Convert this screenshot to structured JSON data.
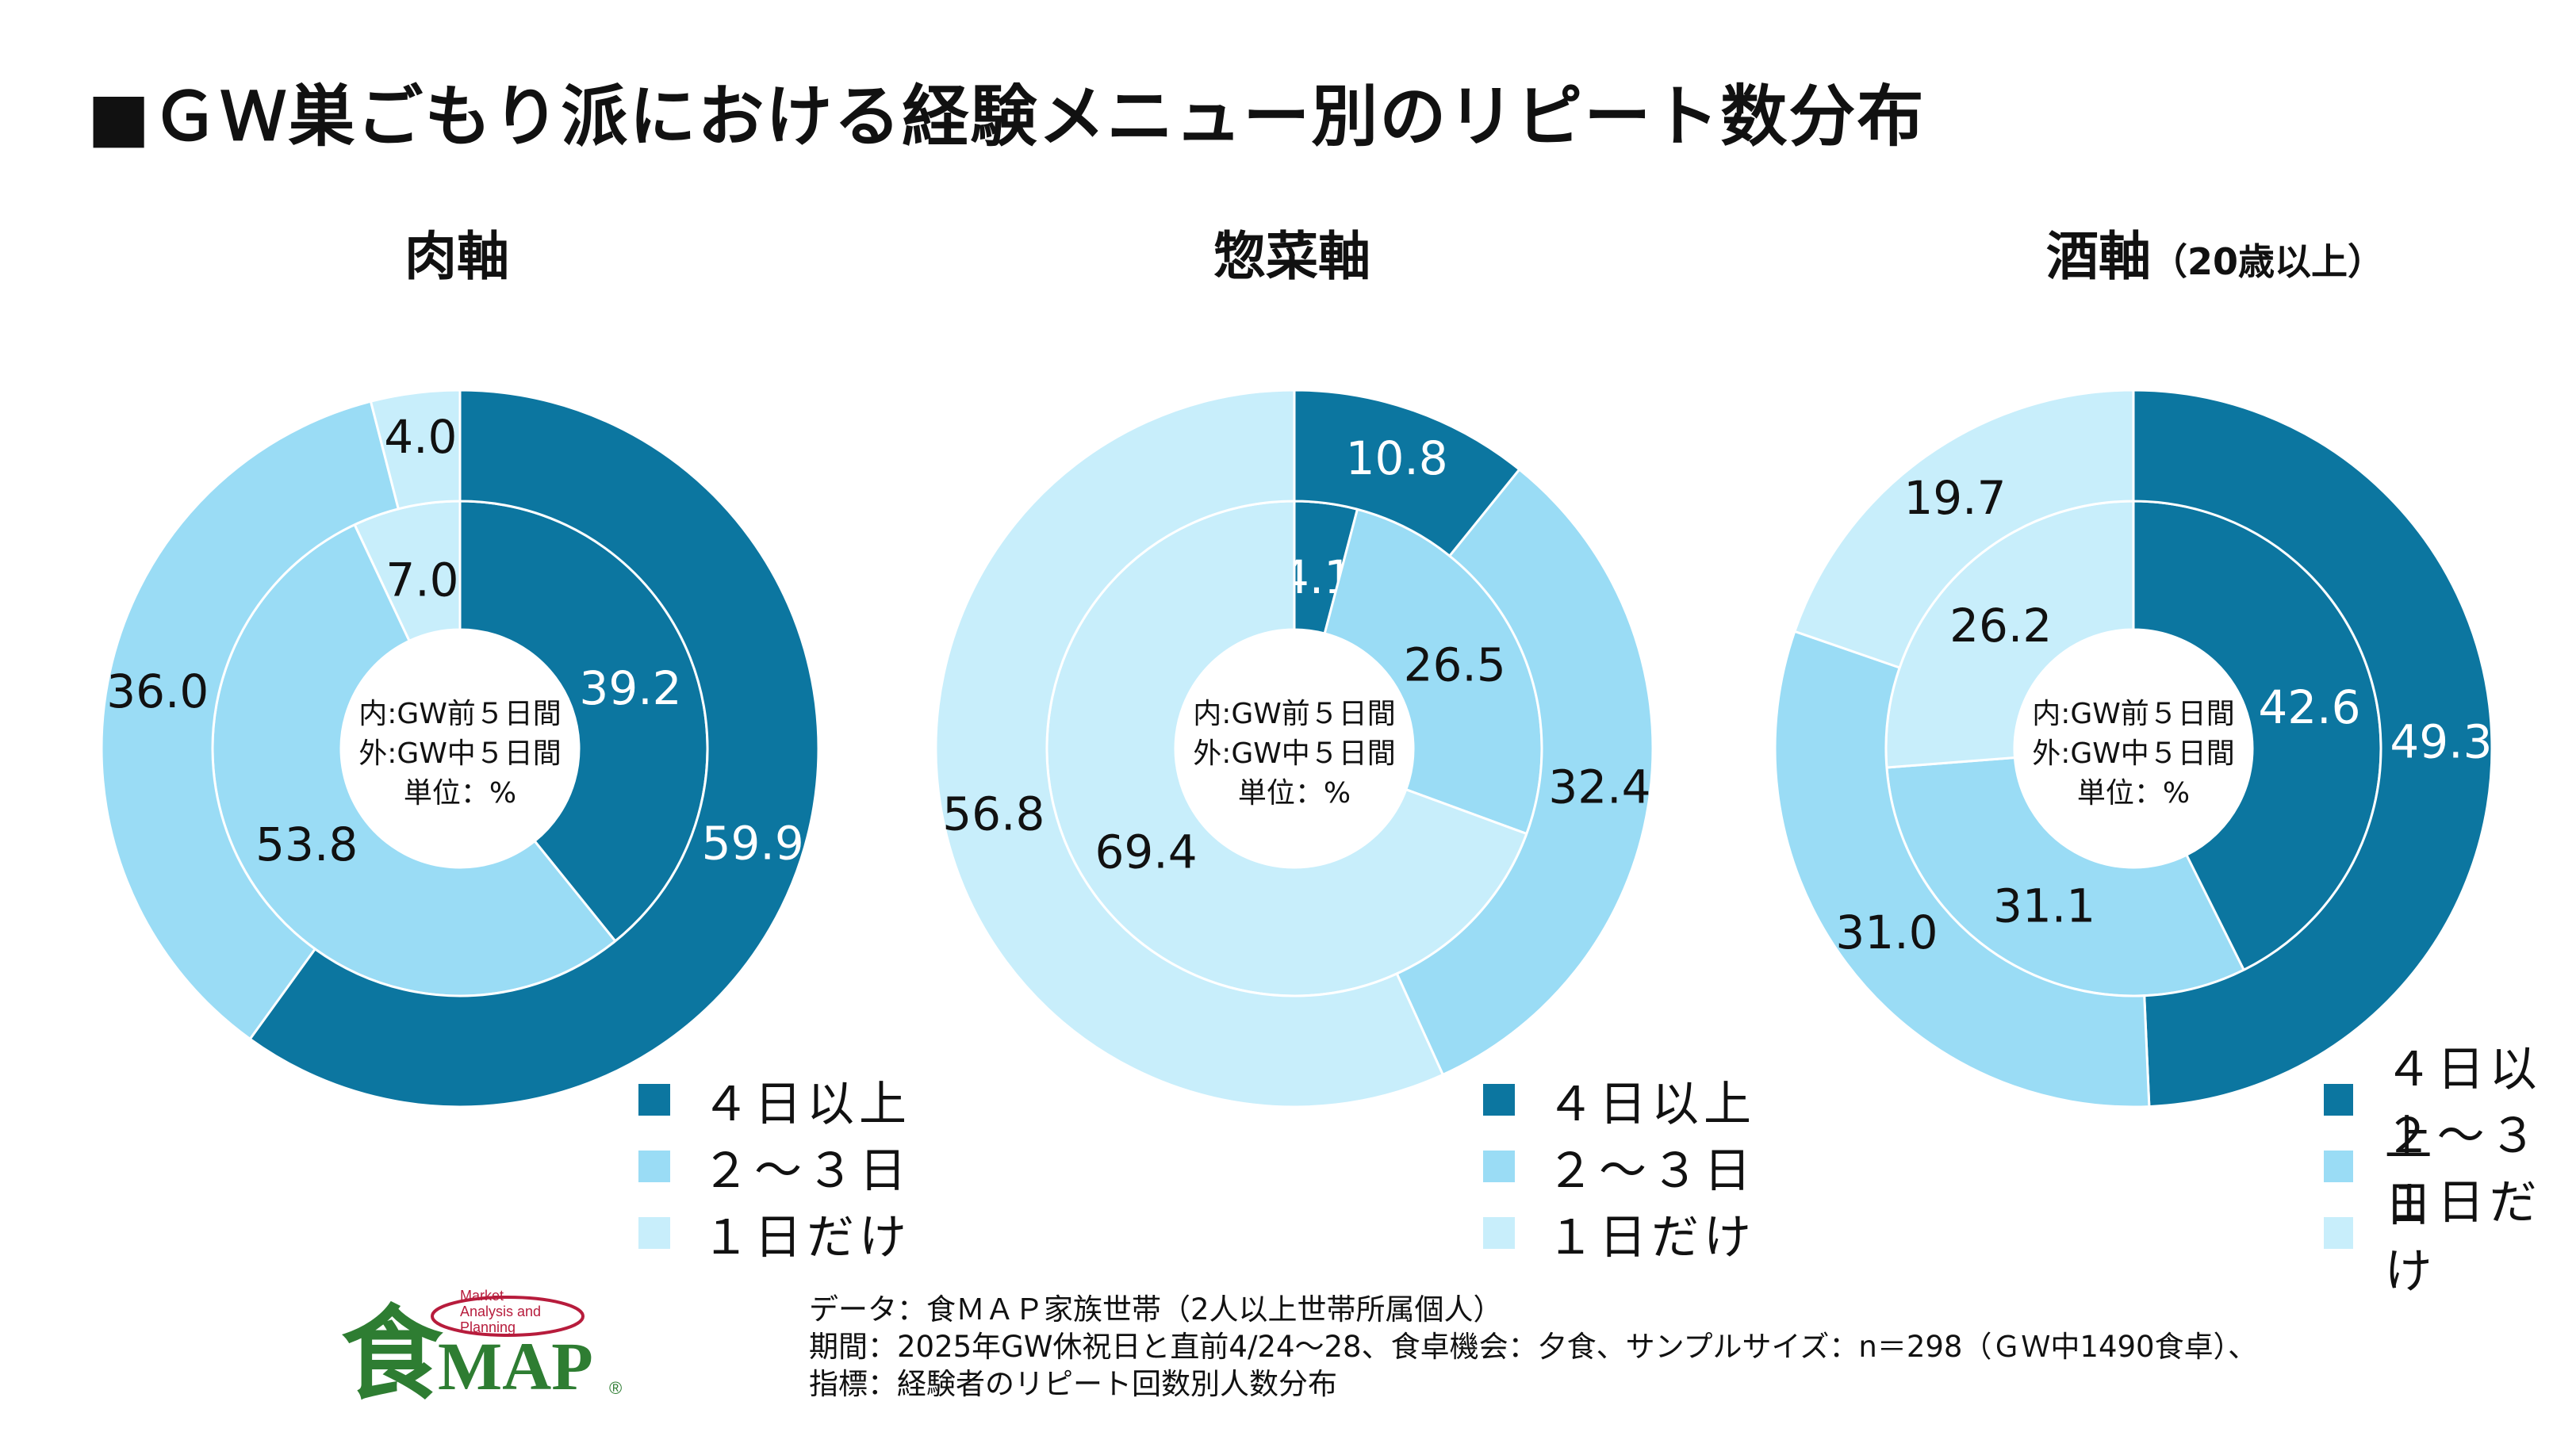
{
  "title": "■ＧＷ巣ごもり派における経験メニュー別のリピート数分布",
  "center_label": [
    "内:GW前５日間",
    "外:GW中５日間",
    "単位：%"
  ],
  "legend": [
    {
      "label": "４日以上",
      "color": "#0c76a0"
    },
    {
      "label": "２～３日",
      "color": "#9adcf5"
    },
    {
      "label": "１日だけ",
      "color": "#c8eefb"
    }
  ],
  "chart_data": [
    {
      "type": "donut",
      "title": "肉軸",
      "subtitle": "",
      "categories": [
        "４日以上",
        "２～３日",
        "１日だけ"
      ],
      "series": [
        {
          "name": "GW前５日間 (内)",
          "values": [
            39.2,
            53.8,
            7.0
          ],
          "labels": [
            "39.2",
            "53.8",
            "7.0"
          ]
        },
        {
          "name": "GW中５日間 (外)",
          "values": [
            59.9,
            36.0,
            4.0
          ],
          "labels": [
            "59.9",
            "36.0",
            "4.0"
          ]
        }
      ]
    },
    {
      "type": "donut",
      "title": "惣菜軸",
      "subtitle": "",
      "categories": [
        "４日以上",
        "２～３日",
        "１日だけ"
      ],
      "series": [
        {
          "name": "GW前５日間 (内)",
          "values": [
            4.1,
            26.5,
            69.4
          ],
          "labels": [
            "4.1",
            "26.5",
            "69.4"
          ]
        },
        {
          "name": "GW中５日間 (外)",
          "values": [
            10.8,
            32.4,
            56.8
          ],
          "labels": [
            "10.8",
            "32.4",
            "56.8"
          ]
        }
      ]
    },
    {
      "type": "donut",
      "title": "酒軸",
      "subtitle": "（20歳以上）",
      "categories": [
        "４日以上",
        "２～３日",
        "１日だけ"
      ],
      "series": [
        {
          "name": "GW前５日間 (内)",
          "values": [
            42.6,
            31.1,
            26.2
          ],
          "labels": [
            "42.6",
            "31.1",
            "26.2"
          ]
        },
        {
          "name": "GW中５日間 (外)",
          "values": [
            49.3,
            31.0,
            19.7
          ],
          "labels": [
            "49.3",
            "31.0",
            "19.7"
          ]
        }
      ]
    }
  ],
  "footer": [
    "データ：食ＭＡＰ家族世帯（2人以上世帯所属個人）",
    "期間：2025年GW休祝日と直前4/24～28、食卓機会：夕食、サンプルサイズ：n＝298（ＧＷ中1490食卓）、",
    "指標：経験者のリピート回数別人数分布"
  ],
  "logo": {
    "kanji": "食",
    "text": "MAP",
    "mark": "®",
    "tagline": [
      "Market",
      "Analysis and",
      "Planning"
    ],
    "color": "#2e7d32",
    "accent": "#b71c3c"
  }
}
